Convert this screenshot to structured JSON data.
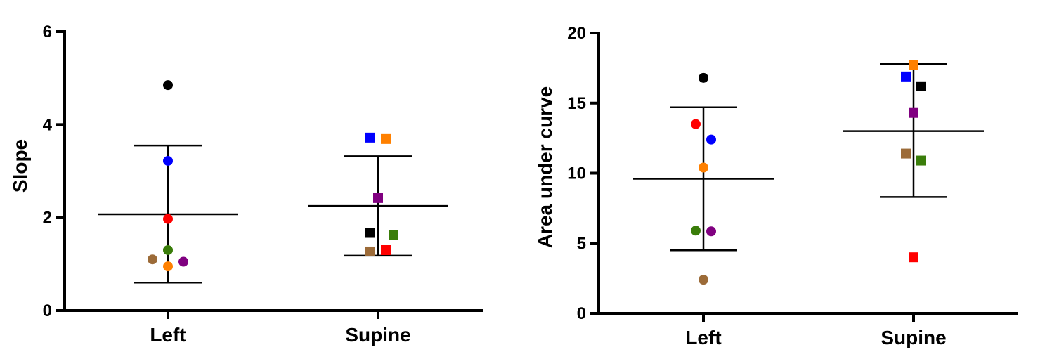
{
  "chart_data": [
    {
      "type": "scatter",
      "title": "",
      "xlabel": "",
      "ylabel": "Slope",
      "ylim": [
        0,
        6
      ],
      "yticks": [
        0,
        2,
        4,
        6
      ],
      "categories": [
        "Left",
        "Supine"
      ],
      "groups": [
        {
          "category": "Left",
          "marker": "circle",
          "mean": 2.07,
          "error_upper": 3.55,
          "error_lower": 0.6,
          "points": [
            {
              "color": "#000000",
              "y": 4.85,
              "offset": 0
            },
            {
              "color": "#0000ff",
              "y": 3.22,
              "offset": 0
            },
            {
              "color": "#ff0000",
              "y": 1.97,
              "offset": 0
            },
            {
              "color": "#3a7d0a",
              "y": 1.3,
              "offset": 0
            },
            {
              "color": "#9c6b38",
              "y": 1.1,
              "offset": -1
            },
            {
              "color": "#ff8000",
              "y": 0.95,
              "offset": 0
            },
            {
              "color": "#800080",
              "y": 1.05,
              "offset": 1
            }
          ]
        },
        {
          "category": "Supine",
          "marker": "square",
          "mean": 2.25,
          "error_upper": 3.32,
          "error_lower": 1.18,
          "points": [
            {
              "color": "#0000ff",
              "y": 3.72,
              "offset": -0.5
            },
            {
              "color": "#ff8000",
              "y": 3.69,
              "offset": 0.5
            },
            {
              "color": "#800080",
              "y": 2.42,
              "offset": 0
            },
            {
              "color": "#000000",
              "y": 1.67,
              "offset": -0.5
            },
            {
              "color": "#3a7d0a",
              "y": 1.63,
              "offset": 1
            },
            {
              "color": "#9c6b38",
              "y": 1.27,
              "offset": -0.5
            },
            {
              "color": "#ff0000",
              "y": 1.3,
              "offset": 0.5
            }
          ]
        }
      ]
    },
    {
      "type": "scatter",
      "title": "",
      "xlabel": "",
      "ylabel": "Area under curve",
      "ylim": [
        0,
        20
      ],
      "yticks": [
        0,
        5,
        10,
        15,
        20
      ],
      "categories": [
        "Left",
        "Supine"
      ],
      "groups": [
        {
          "category": "Left",
          "marker": "circle",
          "mean": 9.6,
          "error_upper": 14.7,
          "error_lower": 4.5,
          "points": [
            {
              "color": "#000000",
              "y": 16.8,
              "offset": 0
            },
            {
              "color": "#ff0000",
              "y": 13.5,
              "offset": -0.5
            },
            {
              "color": "#0000ff",
              "y": 12.4,
              "offset": 0.5
            },
            {
              "color": "#ff8000",
              "y": 10.4,
              "offset": 0
            },
            {
              "color": "#3a7d0a",
              "y": 5.9,
              "offset": -0.5
            },
            {
              "color": "#800080",
              "y": 5.85,
              "offset": 0.5
            },
            {
              "color": "#9c6b38",
              "y": 2.4,
              "offset": 0
            }
          ]
        },
        {
          "category": "Supine",
          "marker": "square",
          "mean": 13.0,
          "error_upper": 17.8,
          "error_lower": 8.3,
          "points": [
            {
              "color": "#ff8000",
              "y": 17.7,
              "offset": 0
            },
            {
              "color": "#0000ff",
              "y": 16.9,
              "offset": -0.5
            },
            {
              "color": "#000000",
              "y": 16.2,
              "offset": 0.5
            },
            {
              "color": "#800080",
              "y": 14.3,
              "offset": 0
            },
            {
              "color": "#9c6b38",
              "y": 11.4,
              "offset": -0.5
            },
            {
              "color": "#3a7d0a",
              "y": 10.9,
              "offset": 0.5
            },
            {
              "color": "#ff0000",
              "y": 4.0,
              "offset": 0
            }
          ]
        }
      ]
    }
  ]
}
